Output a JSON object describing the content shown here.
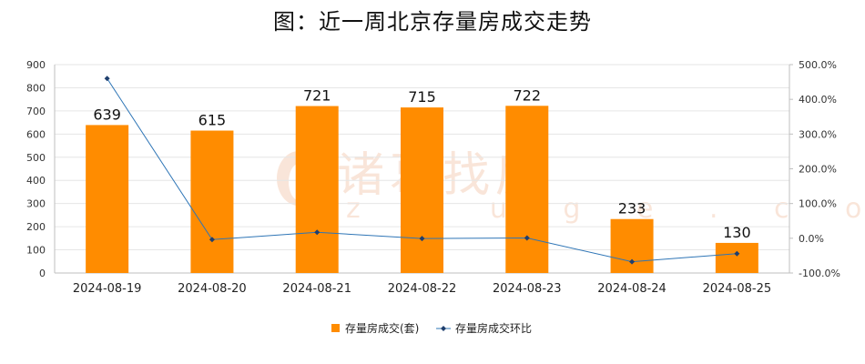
{
  "title": "图：近一周北京存量房成交走势",
  "watermark": {
    "text": "诸葛找房",
    "sub": "z h u g e . c o m"
  },
  "colors": {
    "bar": "#ff8c00",
    "line": "#2e75b6",
    "axis": "#bfbfbf",
    "grid": "#e6e6e6",
    "text": "#333333"
  },
  "chart_data": {
    "type": "bar+line",
    "title": "图：近一周北京存量房成交走势",
    "categories": [
      "2024-08-19",
      "2024-08-20",
      "2024-08-21",
      "2024-08-22",
      "2024-08-23",
      "2024-08-24",
      "2024-08-25"
    ],
    "series": [
      {
        "name": "存量房成交(套)",
        "type": "bar",
        "axis": "left",
        "values": [
          639,
          615,
          721,
          715,
          722,
          233,
          130
        ],
        "data_labels": [
          "639",
          "615",
          "721",
          "715",
          "722",
          "233",
          "130"
        ]
      },
      {
        "name": "存量房成交环比",
        "type": "line",
        "axis": "right",
        "values": [
          460,
          -3.8,
          17.2,
          -0.8,
          1.0,
          -67.7,
          -44.2
        ]
      }
    ],
    "y_left": {
      "min": 0,
      "max": 900,
      "ticks": [
        0,
        100,
        200,
        300,
        400,
        500,
        600,
        700,
        800,
        900
      ],
      "tick_labels": [
        "0",
        "100",
        "200",
        "300",
        "400",
        "500",
        "600",
        "700",
        "800",
        "900"
      ]
    },
    "y_right": {
      "min": -100,
      "max": 500,
      "ticks": [
        -100,
        0,
        100,
        200,
        300,
        400,
        500
      ],
      "tick_labels": [
        "-100.0%",
        "0.0%",
        "100.0%",
        "200.0%",
        "300.0%",
        "400.0%",
        "500.0%"
      ]
    },
    "grid": true,
    "legend_position": "bottom"
  }
}
